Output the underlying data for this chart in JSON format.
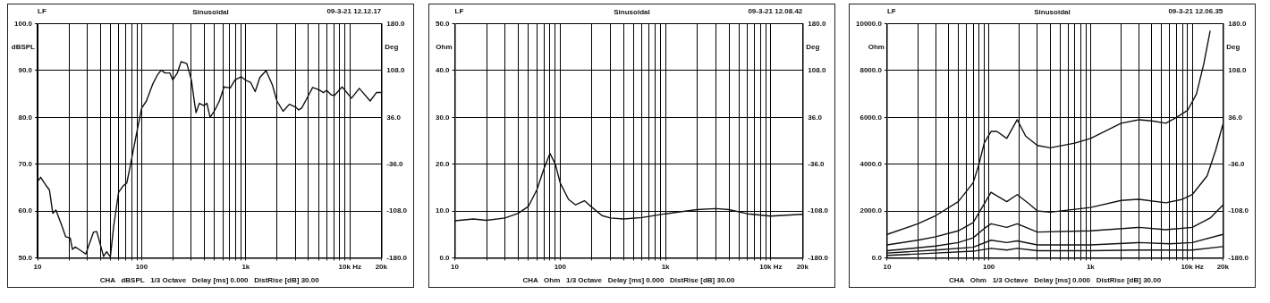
{
  "chart_data": [
    {
      "type": "line",
      "title": "Sinusoidal",
      "ylabel": "dBSPL",
      "y2label": "Deg",
      "annotations": [
        "LF",
        "09-3-21 12.12.17",
        "CHA   dBSPL   1/3 Octave   Delay [ms] 0.000   DistRise [dB] 30.00"
      ],
      "series": [
        {
          "color": "#111111",
          "x": [
            10,
            10.7,
            12,
            13,
            14,
            15,
            17,
            18.6,
            20.6,
            21.6,
            23,
            25,
            29,
            34.5,
            37,
            41,
            43,
            46,
            50,
            54,
            60,
            66,
            72,
            79,
            90,
            100,
            111,
            127,
            141,
            154,
            167,
            186,
            199,
            220,
            239,
            271,
            300,
            322,
            333,
            357,
            395,
            423,
            454,
            503,
            557,
            618,
            709,
            787,
            902,
            1000,
            1109,
            1230,
            1363,
            1564,
            1795,
            1990,
            2282,
            2619,
            3006,
            3216,
            3443,
            3953,
            4385,
            5026,
            5572,
            5971,
            6622,
            7098,
            8420,
            10350,
            12300,
            15640,
            17950,
            20000
          ],
          "values": [
            66.3,
            67.2,
            65.5,
            64.5,
            59.5,
            60.2,
            57,
            54.5,
            54.2,
            51.8,
            52.3,
            51.8,
            50.8,
            55.5,
            55.6,
            52,
            50.3,
            51.3,
            50.2,
            57,
            64,
            65.3,
            66,
            70.5,
            77,
            82,
            83.5,
            87,
            89,
            90.1,
            89.5,
            89.5,
            88,
            89.5,
            91.9,
            91.5,
            88,
            83,
            81,
            83,
            82.5,
            83,
            80,
            81.5,
            83.5,
            86.5,
            86.3,
            88,
            88.7,
            87.9,
            87.5,
            85.5,
            88.5,
            90,
            87,
            83.5,
            81.3,
            82.8,
            82.2,
            81.6,
            82,
            84.5,
            86.4,
            85.9,
            85.3,
            85.8,
            84.8,
            84.7,
            86.5,
            84.1,
            86.2,
            83.5,
            85.3,
            85.3
          ]
        }
      ],
      "log": "x",
      "xlim": [
        10,
        20000
      ],
      "xticks": [
        {
          "value": 10,
          "label": "10"
        },
        {
          "value": 20,
          "label": null
        },
        {
          "value": 30,
          "label": null
        },
        {
          "value": 40,
          "label": null
        },
        {
          "value": 50,
          "label": null
        },
        {
          "value": 60,
          "label": null
        },
        {
          "value": 70,
          "label": null
        },
        {
          "value": 80,
          "label": null
        },
        {
          "value": 90,
          "label": null
        },
        {
          "value": 100,
          "label": "100"
        },
        {
          "value": 200,
          "label": null
        },
        {
          "value": 300,
          "label": null
        },
        {
          "value": 400,
          "label": null
        },
        {
          "value": 500,
          "label": null
        },
        {
          "value": 600,
          "label": null
        },
        {
          "value": 700,
          "label": null
        },
        {
          "value": 800,
          "label": null
        },
        {
          "value": 900,
          "label": null
        },
        {
          "value": 1000,
          "label": "1k"
        },
        {
          "value": 2000,
          "label": null
        },
        {
          "value": 3000,
          "label": null
        },
        {
          "value": 4000,
          "label": null
        },
        {
          "value": 5000,
          "label": null
        },
        {
          "value": 6000,
          "label": null
        },
        {
          "value": 7000,
          "label": null
        },
        {
          "value": 8000,
          "label": null
        },
        {
          "value": 9000,
          "label": null
        },
        {
          "value": 10000,
          "label": "10k Hz"
        },
        {
          "value": 20000,
          "label": "20k"
        }
      ],
      "ylim": [
        50,
        100
      ],
      "yticks": [
        {
          "value": 50,
          "label": "50.0"
        },
        {
          "value": 60,
          "label": "60.0"
        },
        {
          "value": 70,
          "label": "70.0"
        },
        {
          "value": 80,
          "label": "80.0"
        },
        {
          "value": 90,
          "label": "90.0"
        },
        {
          "value": 100,
          "label": "100.0"
        }
      ],
      "y2lim": [
        -180,
        180
      ],
      "y2ticks": [
        {
          "value": -180,
          "label": "-180.0"
        },
        {
          "value": -108,
          "label": "-108.0"
        },
        {
          "value": -36,
          "label": "-36.0"
        },
        {
          "value": 36,
          "label": "36.0"
        },
        {
          "value": 108,
          "label": "108.0"
        },
        {
          "value": 180,
          "label": "180.0"
        }
      ],
      "grid": true,
      "legend": false,
      "marker": "none",
      "line_style": "solid"
    },
    {
      "type": "line",
      "title": "Sinusoidal",
      "ylabel": "Ohm",
      "y2label": "Deg",
      "annotations": [
        "LF",
        "09-3-21 12.08.42",
        "CHA   Ohm   1/3 Octave   Delay [ms] 0.000   DistRise [dB] 30.00"
      ],
      "series": [
        {
          "color": "#111111",
          "x": [
            10,
            15,
            20,
            30,
            40,
            50,
            60,
            70,
            80,
            90,
            100,
            120,
            140,
            170,
            200,
            250,
            300,
            400,
            600,
            1000,
            2000,
            3000,
            4000,
            6000,
            10000,
            20000
          ],
          "values": [
            7.9,
            8.3,
            8.0,
            8.5,
            9.5,
            11,
            14.5,
            19,
            22.3,
            20,
            16,
            12.5,
            11.3,
            12.2,
            10.8,
            9,
            8.5,
            8.3,
            8.6,
            9.4,
            10.3,
            10.5,
            10.3,
            9.4,
            8.9,
            9.3
          ]
        }
      ],
      "log": "x",
      "xlim": [
        10,
        20000
      ],
      "xticks": [
        {
          "value": 10,
          "label": "10"
        },
        {
          "value": 20,
          "label": null
        },
        {
          "value": 30,
          "label": null
        },
        {
          "value": 40,
          "label": null
        },
        {
          "value": 50,
          "label": null
        },
        {
          "value": 60,
          "label": null
        },
        {
          "value": 70,
          "label": null
        },
        {
          "value": 80,
          "label": null
        },
        {
          "value": 90,
          "label": null
        },
        {
          "value": 100,
          "label": "100"
        },
        {
          "value": 200,
          "label": null
        },
        {
          "value": 300,
          "label": null
        },
        {
          "value": 400,
          "label": null
        },
        {
          "value": 500,
          "label": null
        },
        {
          "value": 600,
          "label": null
        },
        {
          "value": 700,
          "label": null
        },
        {
          "value": 800,
          "label": null
        },
        {
          "value": 900,
          "label": null
        },
        {
          "value": 1000,
          "label": "1k"
        },
        {
          "value": 2000,
          "label": null
        },
        {
          "value": 3000,
          "label": null
        },
        {
          "value": 4000,
          "label": null
        },
        {
          "value": 5000,
          "label": null
        },
        {
          "value": 6000,
          "label": null
        },
        {
          "value": 7000,
          "label": null
        },
        {
          "value": 8000,
          "label": null
        },
        {
          "value": 9000,
          "label": null
        },
        {
          "value": 10000,
          "label": "10k Hz"
        },
        {
          "value": 20000,
          "label": "20k"
        }
      ],
      "ylim": [
        0,
        50
      ],
      "yticks": [
        {
          "value": 0,
          "label": "0.0"
        },
        {
          "value": 10,
          "label": "10.0"
        },
        {
          "value": 20,
          "label": "20.0"
        },
        {
          "value": 30,
          "label": "30.0"
        },
        {
          "value": 40,
          "label": "40.0"
        },
        {
          "value": 50,
          "label": "50.0"
        }
      ],
      "y2lim": [
        -180,
        180
      ],
      "y2ticks": [
        {
          "value": -180,
          "label": "-180.0"
        },
        {
          "value": -108,
          "label": "-108.0"
        },
        {
          "value": -36,
          "label": "-36.0"
        },
        {
          "value": 36,
          "label": "36.0"
        },
        {
          "value": 108,
          "label": "108.0"
        },
        {
          "value": 180,
          "label": "180.0"
        }
      ],
      "grid": true,
      "legend": false,
      "marker": "none",
      "line_style": "solid"
    },
    {
      "type": "line",
      "title": "Sinusoidal",
      "ylabel": "Ohm",
      "y2label": "Deg",
      "annotations": [
        "LF",
        "09-3-21 12.06.35",
        "CHA   Ohm   1/3 Octave   Delay [ms] 0.000   DistRise [dB] 30.00"
      ],
      "series": [
        {
          "color": "#111111",
          "x": [
            10,
            20,
            30,
            50,
            70,
            80,
            90,
            105,
            120,
            150,
            190,
            230,
            300,
            400,
            700,
            1000,
            2000,
            3000,
            4000,
            5500,
            7000,
            9000,
            11000,
            13000,
            15000
          ],
          "values": [
            1000,
            1450,
            1800,
            2400,
            3200,
            4000,
            4900,
            5400,
            5400,
            5100,
            5900,
            5200,
            4800,
            4700,
            4900,
            5100,
            5750,
            5900,
            5850,
            5750,
            6000,
            6300,
            7000,
            8300,
            9700
          ]
        },
        {
          "color": "#111111",
          "x": [
            10,
            20,
            30,
            50,
            70,
            90,
            105,
            150,
            190,
            250,
            300,
            400,
            1000,
            2000,
            3000,
            5500,
            8000,
            10000,
            14000,
            17000,
            20000
          ],
          "values": [
            550,
            750,
            900,
            1150,
            1500,
            2300,
            2800,
            2400,
            2700,
            2300,
            2000,
            1950,
            2150,
            2450,
            2500,
            2350,
            2500,
            2700,
            3500,
            4600,
            5700
          ]
        },
        {
          "color": "#111111",
          "x": [
            10,
            30,
            50,
            70,
            90,
            105,
            150,
            190,
            300,
            1000,
            3000,
            5500,
            10000,
            15000,
            20000
          ],
          "values": [
            300,
            500,
            650,
            850,
            1250,
            1450,
            1300,
            1450,
            1100,
            1150,
            1300,
            1200,
            1300,
            1700,
            2250
          ]
        },
        {
          "color": "#111111",
          "x": [
            10,
            30,
            70,
            105,
            150,
            190,
            300,
            1000,
            3000,
            6000,
            10000,
            20000
          ],
          "values": [
            200,
            330,
            450,
            750,
            650,
            720,
            550,
            550,
            650,
            600,
            650,
            1000
          ]
        },
        {
          "color": "#111111",
          "x": [
            10,
            30,
            70,
            105,
            150,
            190,
            300,
            1000,
            3000,
            10000,
            20000
          ],
          "values": [
            100,
            200,
            280,
            400,
            330,
            400,
            300,
            300,
            330,
            330,
            480
          ]
        }
      ],
      "log": "x",
      "xlim": [
        10,
        20000
      ],
      "xticks": [
        {
          "value": 10,
          "label": "10"
        },
        {
          "value": 20,
          "label": null
        },
        {
          "value": 30,
          "label": null
        },
        {
          "value": 40,
          "label": null
        },
        {
          "value": 50,
          "label": null
        },
        {
          "value": 60,
          "label": null
        },
        {
          "value": 70,
          "label": null
        },
        {
          "value": 80,
          "label": null
        },
        {
          "value": 90,
          "label": null
        },
        {
          "value": 100,
          "label": "100"
        },
        {
          "value": 200,
          "label": null
        },
        {
          "value": 300,
          "label": null
        },
        {
          "value": 400,
          "label": null
        },
        {
          "value": 500,
          "label": null
        },
        {
          "value": 600,
          "label": null
        },
        {
          "value": 700,
          "label": null
        },
        {
          "value": 800,
          "label": null
        },
        {
          "value": 900,
          "label": null
        },
        {
          "value": 1000,
          "label": "1k"
        },
        {
          "value": 2000,
          "label": null
        },
        {
          "value": 3000,
          "label": null
        },
        {
          "value": 4000,
          "label": null
        },
        {
          "value": 5000,
          "label": null
        },
        {
          "value": 6000,
          "label": null
        },
        {
          "value": 7000,
          "label": null
        },
        {
          "value": 8000,
          "label": null
        },
        {
          "value": 9000,
          "label": null
        },
        {
          "value": 10000,
          "label": "10k Hz"
        },
        {
          "value": 20000,
          "label": "20k"
        }
      ],
      "ylim": [
        0,
        10000
      ],
      "yticks": [
        {
          "value": 0,
          "label": "0.0"
        },
        {
          "value": 2000,
          "label": "2000.0"
        },
        {
          "value": 4000,
          "label": "4000.0"
        },
        {
          "value": 6000,
          "label": "6000.0"
        },
        {
          "value": 8000,
          "label": "8000.0"
        },
        {
          "value": 10000,
          "label": "10000.0"
        }
      ],
      "y2lim": [
        -180,
        180
      ],
      "y2ticks": [
        {
          "value": -180,
          "label": "-180.0"
        },
        {
          "value": -108,
          "label": "-108.0"
        },
        {
          "value": -36,
          "label": "-36.0"
        },
        {
          "value": 36,
          "label": "36.0"
        },
        {
          "value": 108,
          "label": "108.0"
        },
        {
          "value": 180,
          "label": "180.0"
        }
      ],
      "grid": true,
      "legend": false,
      "marker": "none",
      "line_style": "solid"
    }
  ]
}
